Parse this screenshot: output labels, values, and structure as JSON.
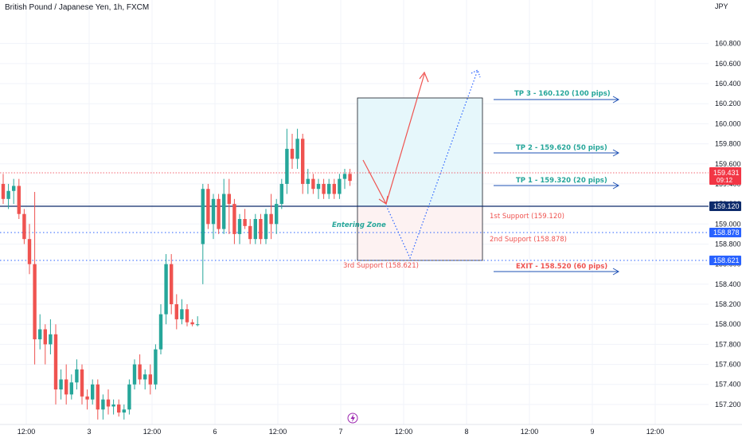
{
  "header": {
    "symbol": "British Pound / Japanese Yen, 1h, FXCM"
  },
  "price_axis": {
    "currency": "JPY",
    "ticks": [
      "160.800",
      "160.600",
      "160.400",
      "160.200",
      "160.000",
      "159.800",
      "159.600",
      "159.400",
      "159.200",
      "159.000",
      "158.800",
      "158.600",
      "158.400",
      "158.200",
      "158.000",
      "157.800",
      "157.600",
      "157.400",
      "157.200"
    ]
  },
  "time_axis": {
    "ticks": [
      "12:00",
      "3",
      "12:00",
      "6",
      "12:00",
      "7",
      "12:00",
      "8",
      "12:00",
      "9",
      "12:00"
    ]
  },
  "price_tags": {
    "last": {
      "price": "159.431",
      "countdown": "09:12",
      "color": "#f23645"
    },
    "line1": {
      "price": "159.120",
      "color": "#0d2b6b"
    },
    "line2": {
      "price": "158.878",
      "color": "#2962ff"
    },
    "line3": {
      "price": "158.621",
      "color": "#2962ff"
    }
  },
  "annotations": {
    "tp3": "TP 3 - 160.120 (100 pips)",
    "tp2": "TP 2 - 159.620 (50 pips)",
    "tp1": "TP 1 - 159.320 (20 pips)",
    "support1": "1st Support (159.120)",
    "support2": "2nd Support (158.878)",
    "support3": "3rd Support (158.621)",
    "exit": "EXIT - 158.520 (60 pips)",
    "entering_zone": "Entering Zone"
  },
  "colors": {
    "up": "#26a69a",
    "down": "#ef5350",
    "tp": "#26a69a",
    "support": "#ef5350",
    "arrow": "#1e50b4"
  },
  "chart_data": {
    "type": "candlestick",
    "ylim": [
      157.12,
      160.98
    ],
    "candles": [
      {
        "o": 159.4,
        "h": 159.5,
        "l": 159.2,
        "c": 159.25
      },
      {
        "o": 159.25,
        "h": 159.4,
        "l": 159.15,
        "c": 159.33
      },
      {
        "o": 159.33,
        "h": 159.45,
        "l": 159.2,
        "c": 159.38
      },
      {
        "o": 159.38,
        "h": 159.45,
        "l": 159.05,
        "c": 159.1
      },
      {
        "o": 159.1,
        "h": 159.15,
        "l": 158.8,
        "c": 158.85
      },
      {
        "o": 158.85,
        "h": 159.0,
        "l": 158.5,
        "c": 158.6
      },
      {
        "o": 158.6,
        "h": 159.32,
        "l": 157.6,
        "c": 157.85
      },
      {
        "o": 157.85,
        "h": 158.1,
        "l": 157.75,
        "c": 157.95
      },
      {
        "o": 157.95,
        "h": 158.0,
        "l": 157.6,
        "c": 157.8
      },
      {
        "o": 157.8,
        "h": 158.05,
        "l": 157.7,
        "c": 157.9
      },
      {
        "o": 157.9,
        "h": 158.0,
        "l": 157.2,
        "c": 157.35
      },
      {
        "o": 157.35,
        "h": 157.55,
        "l": 157.25,
        "c": 157.45
      },
      {
        "o": 157.45,
        "h": 157.6,
        "l": 157.2,
        "c": 157.3
      },
      {
        "o": 157.3,
        "h": 157.5,
        "l": 157.25,
        "c": 157.42
      },
      {
        "o": 157.42,
        "h": 157.65,
        "l": 157.35,
        "c": 157.55
      },
      {
        "o": 157.55,
        "h": 157.6,
        "l": 157.2,
        "c": 157.28
      },
      {
        "o": 157.28,
        "h": 157.35,
        "l": 157.15,
        "c": 157.25
      },
      {
        "o": 157.25,
        "h": 157.45,
        "l": 157.2,
        "c": 157.4
      },
      {
        "o": 157.4,
        "h": 157.45,
        "l": 157.05,
        "c": 157.15
      },
      {
        "o": 157.15,
        "h": 157.3,
        "l": 157.05,
        "c": 157.25
      },
      {
        "o": 157.25,
        "h": 157.35,
        "l": 157.1,
        "c": 157.18
      },
      {
        "o": 157.18,
        "h": 157.25,
        "l": 157.1,
        "c": 157.2
      },
      {
        "o": 157.2,
        "h": 157.25,
        "l": 157.08,
        "c": 157.12
      },
      {
        "o": 157.12,
        "h": 157.2,
        "l": 157.05,
        "c": 157.15
      },
      {
        "o": 157.15,
        "h": 157.45,
        "l": 157.1,
        "c": 157.4
      },
      {
        "o": 157.4,
        "h": 157.65,
        "l": 157.35,
        "c": 157.6
      },
      {
        "o": 157.6,
        "h": 157.7,
        "l": 157.4,
        "c": 157.45
      },
      {
        "o": 157.45,
        "h": 157.55,
        "l": 157.35,
        "c": 157.5
      },
      {
        "o": 157.5,
        "h": 157.6,
        "l": 157.3,
        "c": 157.4
      },
      {
        "o": 157.4,
        "h": 157.8,
        "l": 157.35,
        "c": 157.75
      },
      {
        "o": 157.75,
        "h": 158.2,
        "l": 157.7,
        "c": 158.1
      },
      {
        "o": 158.1,
        "h": 158.7,
        "l": 158.0,
        "c": 158.6
      },
      {
        "o": 158.6,
        "h": 158.7,
        "l": 158.1,
        "c": 158.2
      },
      {
        "o": 158.2,
        "h": 158.3,
        "l": 157.95,
        "c": 158.05
      },
      {
        "o": 158.05,
        "h": 158.25,
        "l": 158.0,
        "c": 158.15
      },
      {
        "o": 158.15,
        "h": 158.2,
        "l": 157.98,
        "c": 158.02
      },
      {
        "o": 158.02,
        "h": 158.05,
        "l": 157.98,
        "c": 158.0
      },
      {
        "o": 158.0,
        "h": 158.08,
        "l": 157.98,
        "c": 158.0
      },
      {
        "o": 158.8,
        "h": 159.4,
        "l": 158.4,
        "c": 159.35
      },
      {
        "o": 159.35,
        "h": 159.4,
        "l": 158.95,
        "c": 159.0
      },
      {
        "o": 159.0,
        "h": 159.3,
        "l": 158.85,
        "c": 159.25
      },
      {
        "o": 159.25,
        "h": 159.3,
        "l": 158.9,
        "c": 158.95
      },
      {
        "o": 158.95,
        "h": 159.45,
        "l": 158.9,
        "c": 159.3
      },
      {
        "o": 159.3,
        "h": 159.45,
        "l": 158.9,
        "c": 159.2
      },
      {
        "o": 159.2,
        "h": 159.25,
        "l": 158.8,
        "c": 158.9
      },
      {
        "o": 158.9,
        "h": 159.1,
        "l": 158.8,
        "c": 159.05
      },
      {
        "o": 159.05,
        "h": 159.15,
        "l": 158.95,
        "c": 158.98
      },
      {
        "o": 158.98,
        "h": 159.05,
        "l": 158.8,
        "c": 158.85
      },
      {
        "o": 158.85,
        "h": 159.1,
        "l": 158.8,
        "c": 159.05
      },
      {
        "o": 159.05,
        "h": 159.1,
        "l": 158.8,
        "c": 158.85
      },
      {
        "o": 158.85,
        "h": 159.15,
        "l": 158.8,
        "c": 159.1
      },
      {
        "o": 159.1,
        "h": 159.3,
        "l": 158.85,
        "c": 159.0
      },
      {
        "o": 159.0,
        "h": 159.25,
        "l": 158.9,
        "c": 159.2
      },
      {
        "o": 159.2,
        "h": 159.45,
        "l": 159.15,
        "c": 159.4
      },
      {
        "o": 159.4,
        "h": 159.95,
        "l": 159.3,
        "c": 159.75
      },
      {
        "o": 159.75,
        "h": 159.9,
        "l": 159.55,
        "c": 159.65
      },
      {
        "o": 159.65,
        "h": 159.95,
        "l": 159.55,
        "c": 159.85
      },
      {
        "o": 159.85,
        "h": 159.9,
        "l": 159.3,
        "c": 159.4
      },
      {
        "o": 159.4,
        "h": 159.55,
        "l": 159.3,
        "c": 159.45
      },
      {
        "o": 159.45,
        "h": 159.5,
        "l": 159.3,
        "c": 159.35
      },
      {
        "o": 159.35,
        "h": 159.45,
        "l": 159.25,
        "c": 159.4
      },
      {
        "o": 159.4,
        "h": 159.45,
        "l": 159.25,
        "c": 159.3
      },
      {
        "o": 159.3,
        "h": 159.45,
        "l": 159.25,
        "c": 159.4
      },
      {
        "o": 159.4,
        "h": 159.45,
        "l": 159.25,
        "c": 159.3
      },
      {
        "o": 159.3,
        "h": 159.5,
        "l": 159.25,
        "c": 159.45
      },
      {
        "o": 159.45,
        "h": 159.55,
        "l": 159.35,
        "c": 159.5
      },
      {
        "o": 159.5,
        "h": 159.55,
        "l": 159.38,
        "c": 159.43
      }
    ]
  }
}
